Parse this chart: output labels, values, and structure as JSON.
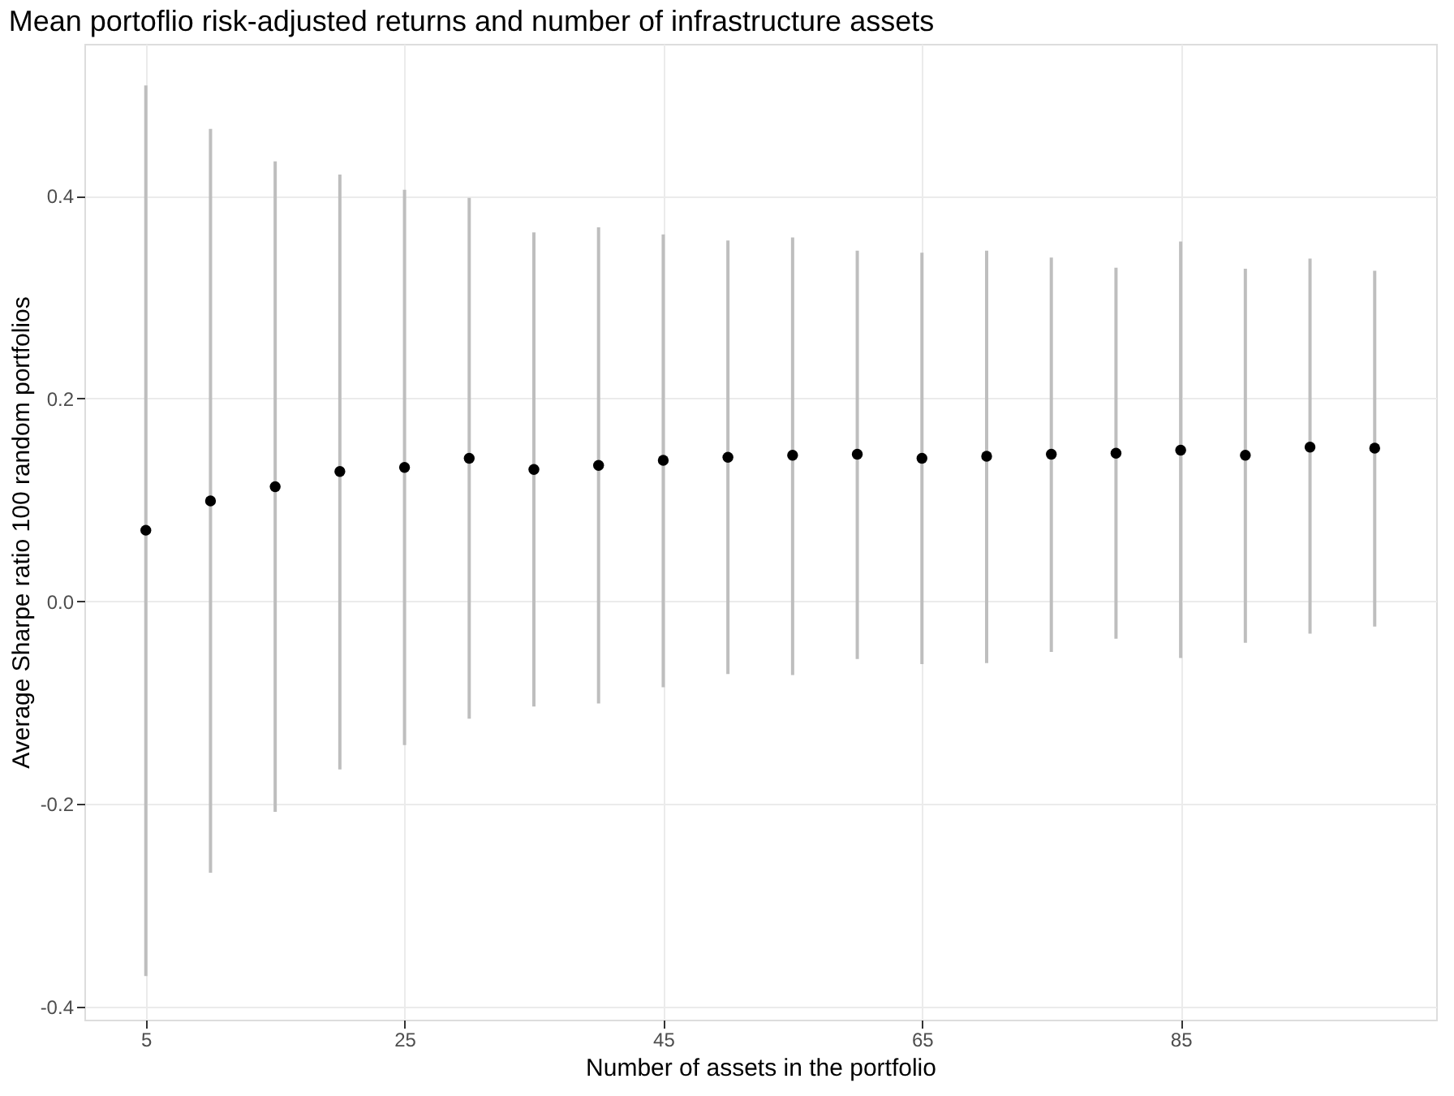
{
  "chart_data": {
    "type": "scatter",
    "title": "Mean portoflio risk-adjusted returns and number of infrastructure assets",
    "xlabel": "Number of assets in the portfolio",
    "ylabel": "Average Sharpe ratio 100 random portfolios",
    "x": [
      5,
      10,
      15,
      20,
      25,
      30,
      35,
      40,
      45,
      50,
      55,
      60,
      65,
      70,
      75,
      80,
      85,
      90,
      95,
      100
    ],
    "series": [
      {
        "color": "#000000",
        "values": [
          0.07,
          0.099,
          0.113,
          0.128,
          0.132,
          0.141,
          0.13,
          0.134,
          0.139,
          0.142,
          0.144,
          0.145,
          0.141,
          0.143,
          0.145,
          0.146,
          0.149,
          0.144,
          0.152,
          0.151
        ],
        "errors": [
          [
            -0.37,
            0.509
          ],
          [
            -0.268,
            0.466
          ],
          [
            -0.208,
            0.434
          ],
          [
            -0.166,
            0.421
          ],
          [
            -0.142,
            0.406
          ],
          [
            -0.116,
            0.398
          ],
          [
            -0.104,
            0.364
          ],
          [
            -0.101,
            0.369
          ],
          [
            -0.085,
            0.362
          ],
          [
            -0.072,
            0.356
          ],
          [
            -0.073,
            0.359
          ],
          [
            -0.057,
            0.346
          ],
          [
            -0.062,
            0.344
          ],
          [
            -0.061,
            0.346
          ],
          [
            -0.05,
            0.339
          ],
          [
            -0.037,
            0.329
          ],
          [
            -0.056,
            0.355
          ],
          [
            -0.041,
            0.328
          ],
          [
            -0.032,
            0.338
          ],
          [
            -0.025,
            0.326
          ]
        ]
      }
    ],
    "marker": "circle",
    "xlim": [
      0.25,
      104.75
    ],
    "xticks": [
      5,
      25,
      45,
      65,
      85
    ],
    "ylim": [
      -0.413,
      0.55
    ],
    "yticks": [
      -0.4,
      -0.2,
      {
        "value": 0,
        "label": "0.0"
      },
      0.2,
      0.4
    ],
    "grid": true
  }
}
